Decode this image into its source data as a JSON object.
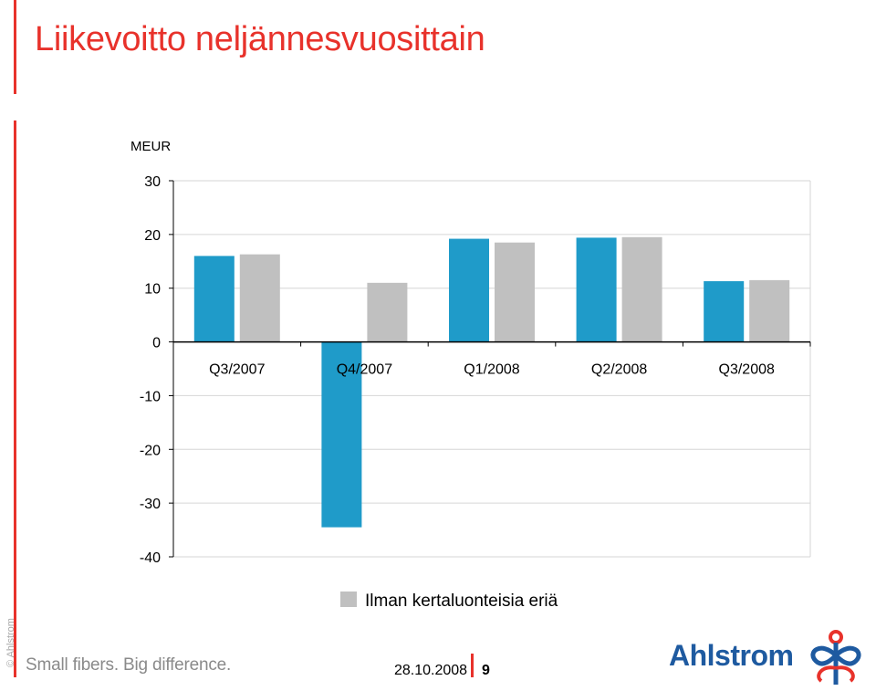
{
  "title": "Liikevoitto neljännesvuosittain",
  "copyright": "© Ahlstrom",
  "footer": {
    "tagline": "Small fibers. Big difference.",
    "date": "28.10.2008",
    "page": "9"
  },
  "logo": {
    "text": "Ahlstrom",
    "icon": "ahlstrom-flower-logo",
    "colors": [
      "#1e5aa0",
      "#e8322b"
    ]
  },
  "colors": {
    "accent": "#e8322b",
    "series_reported": "#1f9bc9",
    "series_adjusted": "#c0c0c0"
  },
  "chart_data": {
    "type": "bar",
    "title": "",
    "unit_label": "MEUR",
    "categories": [
      "Q3/2007",
      "Q4/2007",
      "Q1/2008",
      "Q2/2008",
      "Q3/2008"
    ],
    "series": [
      {
        "values": [
          16.0,
          -34.5,
          19.2,
          19.4,
          11.3
        ],
        "color": "#1f9bc9"
      },
      {
        "name": "Ilman kertaluonteisia eriä",
        "values": [
          16.3,
          11.0,
          18.5,
          19.5,
          11.5
        ],
        "color": "#c0c0c0"
      }
    ],
    "ylim": [
      -40,
      30
    ],
    "yticks": [
      30,
      20,
      10,
      0,
      -10,
      -20,
      -30,
      -40
    ],
    "grid": true,
    "legend_position": "bottom"
  }
}
